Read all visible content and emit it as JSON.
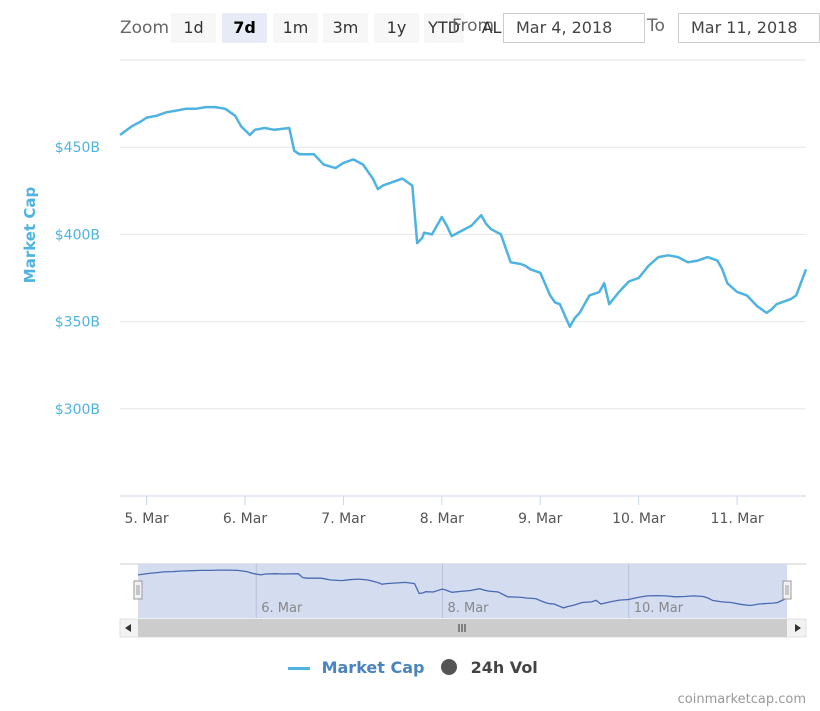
{
  "toolbar": {
    "zoom_label": "Zoom",
    "buttons": [
      "1d",
      "7d",
      "1m",
      "3m",
      "1y",
      "YTD",
      "ALL"
    ],
    "active_button": "7d",
    "from_label": "From",
    "from_value": "Mar 4, 2018",
    "to_label": "To",
    "to_value": "Mar 11, 2018"
  },
  "colors": {
    "market_cap_line": "#4eb3e0",
    "vol_marker": "#555555",
    "grid": "#e6e6e6",
    "navigator_fill": "#cfd8ee",
    "navigator_line": "#4a6ab0"
  },
  "chart_data": {
    "type": "line",
    "ylabel": "Market Cap",
    "y_ticks": [
      "$300B",
      "$350B",
      "$400B",
      "$450B"
    ],
    "y_tick_values": [
      300,
      350,
      400,
      450
    ],
    "ylim": [
      250,
      500
    ],
    "xlim": [
      4.73,
      11.7
    ],
    "x_ticks": [
      "5. Mar",
      "6. Mar",
      "7. Mar",
      "8. Mar",
      "9. Mar",
      "10. Mar",
      "11. Mar"
    ],
    "x_tick_values": [
      5,
      6,
      7,
      8,
      9,
      10,
      11
    ],
    "grid": true,
    "series": [
      {
        "name": "Market Cap",
        "unit": "billion USD",
        "x": [
          4.73,
          4.85,
          4.95,
          5.0,
          5.1,
          5.2,
          5.3,
          5.4,
          5.5,
          5.6,
          5.7,
          5.8,
          5.9,
          5.96,
          6.05,
          6.1,
          6.2,
          6.3,
          6.45,
          6.5,
          6.55,
          6.7,
          6.8,
          6.92,
          7.0,
          7.1,
          7.2,
          7.3,
          7.35,
          7.4,
          7.5,
          7.6,
          7.7,
          7.75,
          7.8,
          7.82,
          7.9,
          8.0,
          8.05,
          8.1,
          8.2,
          8.3,
          8.4,
          8.45,
          8.5,
          8.6,
          8.7,
          8.8,
          8.85,
          8.9,
          9.0,
          9.1,
          9.15,
          9.2,
          9.3,
          9.35,
          9.4,
          9.5,
          9.6,
          9.65,
          9.7,
          9.8,
          9.9,
          10.0,
          10.1,
          10.2,
          10.3,
          10.4,
          10.5,
          10.6,
          10.7,
          10.8,
          10.85,
          10.9,
          11.0,
          11.1,
          11.2,
          11.3,
          11.35,
          11.4,
          11.5,
          11.55,
          11.6,
          11.7
        ],
        "values": [
          457,
          462,
          465,
          467,
          468,
          470,
          471,
          472,
          472,
          473,
          473,
          472,
          468,
          462,
          457,
          460,
          461,
          460,
          461,
          448,
          446,
          446,
          440,
          438,
          441,
          443,
          440,
          432,
          426,
          428,
          430,
          432,
          428,
          395,
          398,
          401,
          400,
          410,
          405,
          399,
          402,
          405,
          411,
          406,
          403,
          400,
          384,
          383,
          382,
          380,
          378,
          365,
          361,
          360,
          347,
          352,
          355,
          365,
          367,
          372,
          360,
          367,
          373,
          375,
          382,
          387,
          388,
          387,
          384,
          385,
          387,
          385,
          380,
          372,
          367,
          365,
          359,
          355,
          357,
          360,
          362,
          363,
          365,
          380
        ]
      },
      {
        "name": "24h Vol",
        "values": []
      }
    ],
    "navigator": {
      "x_ticks": [
        "6. Mar",
        "8. Mar",
        "10. Mar"
      ],
      "x_tick_values": [
        6,
        8,
        10
      ]
    }
  },
  "footer": {
    "credit": "coinmarketcap.com"
  }
}
